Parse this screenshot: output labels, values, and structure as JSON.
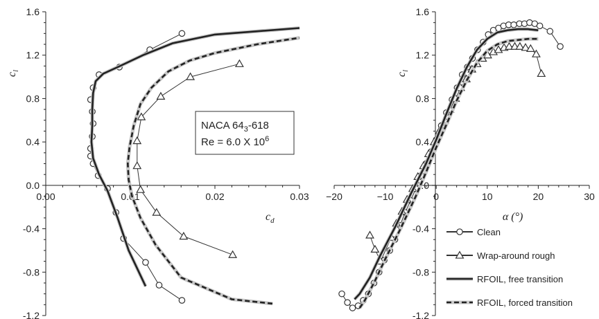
{
  "chart_data": [
    {
      "type": "line",
      "xlabel": "c",
      "xlabel_sub": "d",
      "ylabel": "c",
      "ylabel_sub": "l",
      "xlim": [
        0.0,
        0.03
      ],
      "ylim": [
        -1.2,
        1.6
      ],
      "xticks": [
        "0.00",
        "0.01",
        "0.02",
        "0.03"
      ],
      "yticks": [
        "1.6",
        "1.2",
        "0.8",
        "0.4",
        "0.0",
        "-0.4",
        "-0.8",
        "-1.2"
      ],
      "annotation": {
        "line1_main": "NACA 64",
        "line1_sub": "3",
        "line1_end": "-618",
        "line2_main": "Re = 6.0 X 10",
        "line2_sup": "6"
      },
      "series": [
        {
          "name": "Clean",
          "style": "circles",
          "points": [
            [
              0.0161,
              -1.06
            ],
            [
              0.0134,
              -0.92
            ],
            [
              0.0118,
              -0.71
            ],
            [
              0.0092,
              -0.49
            ],
            [
              0.0083,
              -0.25
            ],
            [
              0.0073,
              -0.03
            ],
            [
              0.0062,
              0.09
            ],
            [
              0.0056,
              0.2
            ],
            [
              0.0053,
              0.27
            ],
            [
              0.0053,
              0.34
            ],
            [
              0.0055,
              0.45
            ],
            [
              0.0056,
              0.57
            ],
            [
              0.0055,
              0.68
            ],
            [
              0.0053,
              0.79
            ],
            [
              0.0056,
              0.9
            ],
            [
              0.0063,
              1.02
            ],
            [
              0.0087,
              1.09
            ],
            [
              0.0123,
              1.25
            ],
            [
              0.0161,
              1.4
            ]
          ]
        },
        {
          "name": "Wrap-around rough",
          "style": "triangles",
          "points": [
            [
              0.0221,
              -0.64
            ],
            [
              0.0163,
              -0.47
            ],
            [
              0.0131,
              -0.25
            ],
            [
              0.0112,
              -0.04
            ],
            [
              0.0108,
              0.18
            ],
            [
              0.0108,
              0.41
            ],
            [
              0.0113,
              0.63
            ],
            [
              0.0136,
              0.82
            ],
            [
              0.0171,
              1.0
            ],
            [
              0.0229,
              1.12
            ]
          ]
        },
        {
          "name": "RFOIL, free transition",
          "style": "solid",
          "points": [
            [
              0.0118,
              -0.93
            ],
            [
              0.0098,
              -0.6
            ],
            [
              0.0085,
              -0.3
            ],
            [
              0.0073,
              -0.05
            ],
            [
              0.0063,
              0.1
            ],
            [
              0.0056,
              0.25
            ],
            [
              0.0054,
              0.4
            ],
            [
              0.0055,
              0.55
            ],
            [
              0.0055,
              0.7
            ],
            [
              0.0056,
              0.85
            ],
            [
              0.0059,
              0.96
            ],
            [
              0.0068,
              1.03
            ],
            [
              0.0085,
              1.09
            ],
            [
              0.0115,
              1.2
            ],
            [
              0.015,
              1.31
            ],
            [
              0.02,
              1.39
            ],
            [
              0.025,
              1.42
            ],
            [
              0.03,
              1.45
            ]
          ]
        },
        {
          "name": "RFOIL, forced transition",
          "style": "dashed",
          "points": [
            [
              0.0268,
              -1.09
            ],
            [
              0.022,
              -1.05
            ],
            [
              0.016,
              -0.85
            ],
            [
              0.013,
              -0.55
            ],
            [
              0.0112,
              -0.3
            ],
            [
              0.0102,
              -0.1
            ],
            [
              0.0098,
              0.05
            ],
            [
              0.0097,
              0.2
            ],
            [
              0.0099,
              0.35
            ],
            [
              0.0104,
              0.55
            ],
            [
              0.0112,
              0.75
            ],
            [
              0.0125,
              0.9
            ],
            [
              0.0145,
              1.05
            ],
            [
              0.017,
              1.15
            ],
            [
              0.02,
              1.22
            ],
            [
              0.025,
              1.3
            ],
            [
              0.03,
              1.36
            ]
          ]
        }
      ]
    },
    {
      "type": "line",
      "xlabel": "α (°)",
      "ylabel": "c",
      "ylabel_sub": "l",
      "xlim": [
        -20,
        30
      ],
      "ylim": [
        -1.2,
        1.6
      ],
      "xticks": [
        "−20",
        "−10",
        "0",
        "10",
        "20",
        "30"
      ],
      "yticks": [
        "1.6",
        "1.2",
        "0.8",
        "0.4",
        "0.0",
        "-0.4",
        "-0.8",
        "-1.2"
      ],
      "legend": [
        {
          "label": "Clean",
          "style": "circles"
        },
        {
          "label": "Wrap-around rough",
          "style": "triangles"
        },
        {
          "label": "RFOIL, free transition",
          "style": "solid"
        },
        {
          "label": "RFOIL, forced transition",
          "style": "dashed"
        }
      ],
      "legend_position": "bottom-right",
      "series": [
        {
          "name": "Clean",
          "style": "circles",
          "points": [
            [
              -18.5,
              -1.0
            ],
            [
              -17.4,
              -1.08
            ],
            [
              -16.4,
              -1.13
            ],
            [
              -15.3,
              -1.11
            ],
            [
              -14.3,
              -1.06
            ],
            [
              -13.3,
              -1.0
            ],
            [
              -12.2,
              -0.9
            ],
            [
              -11.2,
              -0.8
            ],
            [
              -10.2,
              -0.69
            ],
            [
              -9.1,
              -0.6
            ],
            [
              -8.1,
              -0.5
            ],
            [
              -7.1,
              -0.37
            ],
            [
              -6.1,
              -0.25
            ],
            [
              -5.0,
              -0.14
            ],
            [
              -4.0,
              -0.03
            ],
            [
              -3.0,
              0.09
            ],
            [
              -2.0,
              0.2
            ],
            [
              -1.0,
              0.31
            ],
            [
              0.0,
              0.42
            ],
            [
              1.0,
              0.55
            ],
            [
              2.0,
              0.67
            ],
            [
              3.1,
              0.79
            ],
            [
              4.1,
              0.9
            ],
            [
              5.1,
              1.02
            ],
            [
              6.1,
              1.09
            ],
            [
              7.1,
              1.17
            ],
            [
              8.1,
              1.25
            ],
            [
              9.2,
              1.32
            ],
            [
              10.2,
              1.39
            ],
            [
              11.2,
              1.43
            ],
            [
              12.2,
              1.45
            ],
            [
              13.2,
              1.47
            ],
            [
              14.2,
              1.48
            ],
            [
              15.2,
              1.48
            ],
            [
              16.3,
              1.49
            ],
            [
              17.3,
              1.49
            ],
            [
              18.3,
              1.5
            ],
            [
              19.3,
              1.49
            ],
            [
              20.3,
              1.47
            ],
            [
              22.3,
              1.42
            ],
            [
              24.3,
              1.28
            ]
          ]
        },
        {
          "name": "Wrap-around rough",
          "style": "triangles",
          "points": [
            [
              -13.0,
              -0.46
            ],
            [
              -12.0,
              -0.59
            ],
            [
              -10.9,
              -0.7
            ],
            [
              -8.8,
              -0.48
            ],
            [
              -7.8,
              -0.35
            ],
            [
              -6.7,
              -0.24
            ],
            [
              -5.7,
              -0.13
            ],
            [
              -4.6,
              -0.03
            ],
            [
              -3.6,
              0.08
            ],
            [
              -2.5,
              0.18
            ],
            [
              -1.5,
              0.29
            ],
            [
              -0.4,
              0.4
            ],
            [
              0.6,
              0.5
            ],
            [
              1.7,
              0.6
            ],
            [
              2.7,
              0.7
            ],
            [
              3.8,
              0.8
            ],
            [
              4.8,
              0.9
            ],
            [
              5.9,
              0.98
            ],
            [
              7.0,
              1.07
            ],
            [
              8.0,
              1.12
            ],
            [
              9.1,
              1.17
            ],
            [
              10.1,
              1.2
            ],
            [
              11.2,
              1.23
            ],
            [
              12.2,
              1.25
            ],
            [
              13.3,
              1.27
            ],
            [
              14.3,
              1.28
            ],
            [
              15.4,
              1.28
            ],
            [
              16.4,
              1.28
            ],
            [
              17.5,
              1.27
            ],
            [
              18.5,
              1.26
            ],
            [
              19.6,
              1.21
            ],
            [
              20.6,
              1.03
            ]
          ]
        },
        {
          "name": "RFOIL, free transition",
          "style": "solid",
          "points": [
            [
              -16.0,
              -1.05
            ],
            [
              -15.0,
              -1.0
            ],
            [
              -13.0,
              -0.85
            ],
            [
              -11.0,
              -0.65
            ],
            [
              -8.0,
              -0.38
            ],
            [
              -5.0,
              -0.08
            ],
            [
              -2.0,
              0.2
            ],
            [
              0.0,
              0.42
            ],
            [
              2.0,
              0.66
            ],
            [
              4.0,
              0.89
            ],
            [
              6.0,
              1.09
            ],
            [
              8.0,
              1.25
            ],
            [
              10.0,
              1.35
            ],
            [
              12.0,
              1.41
            ],
            [
              14.0,
              1.43
            ],
            [
              16.0,
              1.44
            ],
            [
              18.0,
              1.44
            ],
            [
              20.0,
              1.43
            ]
          ]
        },
        {
          "name": "RFOIL, forced transition",
          "style": "dashed",
          "points": [
            [
              -15.0,
              -1.13
            ],
            [
              -14.0,
              -1.06
            ],
            [
              -12.0,
              -0.88
            ],
            [
              -10.0,
              -0.68
            ],
            [
              -7.0,
              -0.4
            ],
            [
              -4.0,
              -0.1
            ],
            [
              -2.0,
              0.12
            ],
            [
              0.0,
              0.35
            ],
            [
              2.0,
              0.56
            ],
            [
              4.0,
              0.78
            ],
            [
              6.0,
              0.97
            ],
            [
              8.0,
              1.13
            ],
            [
              10.0,
              1.24
            ],
            [
              12.0,
              1.3
            ],
            [
              14.0,
              1.33
            ],
            [
              16.0,
              1.34
            ],
            [
              18.0,
              1.35
            ],
            [
              20.0,
              1.35
            ]
          ]
        }
      ]
    }
  ]
}
